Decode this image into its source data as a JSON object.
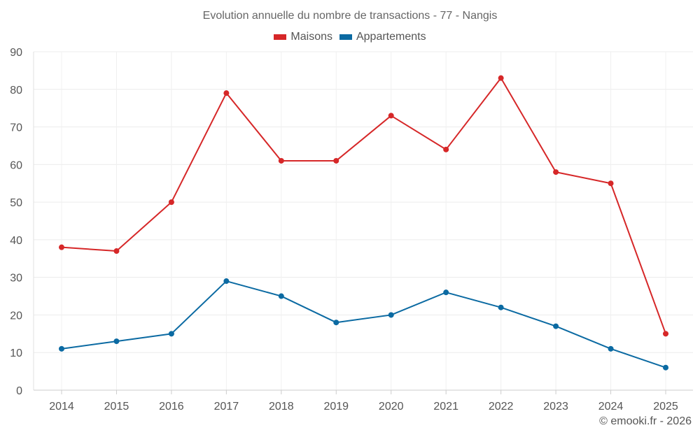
{
  "chart_data": {
    "type": "line",
    "title": "Evolution annuelle du nombre de transactions - 77 - Nangis",
    "categories": [
      "2014",
      "2015",
      "2016",
      "2017",
      "2018",
      "2019",
      "2020",
      "2021",
      "2022",
      "2023",
      "2024",
      "2025"
    ],
    "series": [
      {
        "name": "Maisons",
        "color": "#d62728",
        "values": [
          38,
          37,
          50,
          79,
          61,
          61,
          73,
          64,
          83,
          58,
          55,
          15
        ]
      },
      {
        "name": "Appartements",
        "color": "#0b6aa2",
        "values": [
          11,
          13,
          15,
          29,
          25,
          18,
          20,
          26,
          22,
          17,
          11,
          6
        ]
      }
    ],
    "ylim": [
      0,
      90
    ],
    "yticks": [
      0,
      10,
      20,
      30,
      40,
      50,
      60,
      70,
      80,
      90
    ],
    "grid": true,
    "legend_position": "top-center",
    "xlabel": "",
    "ylabel": ""
  },
  "credit": "© emooki.fr - 2026"
}
